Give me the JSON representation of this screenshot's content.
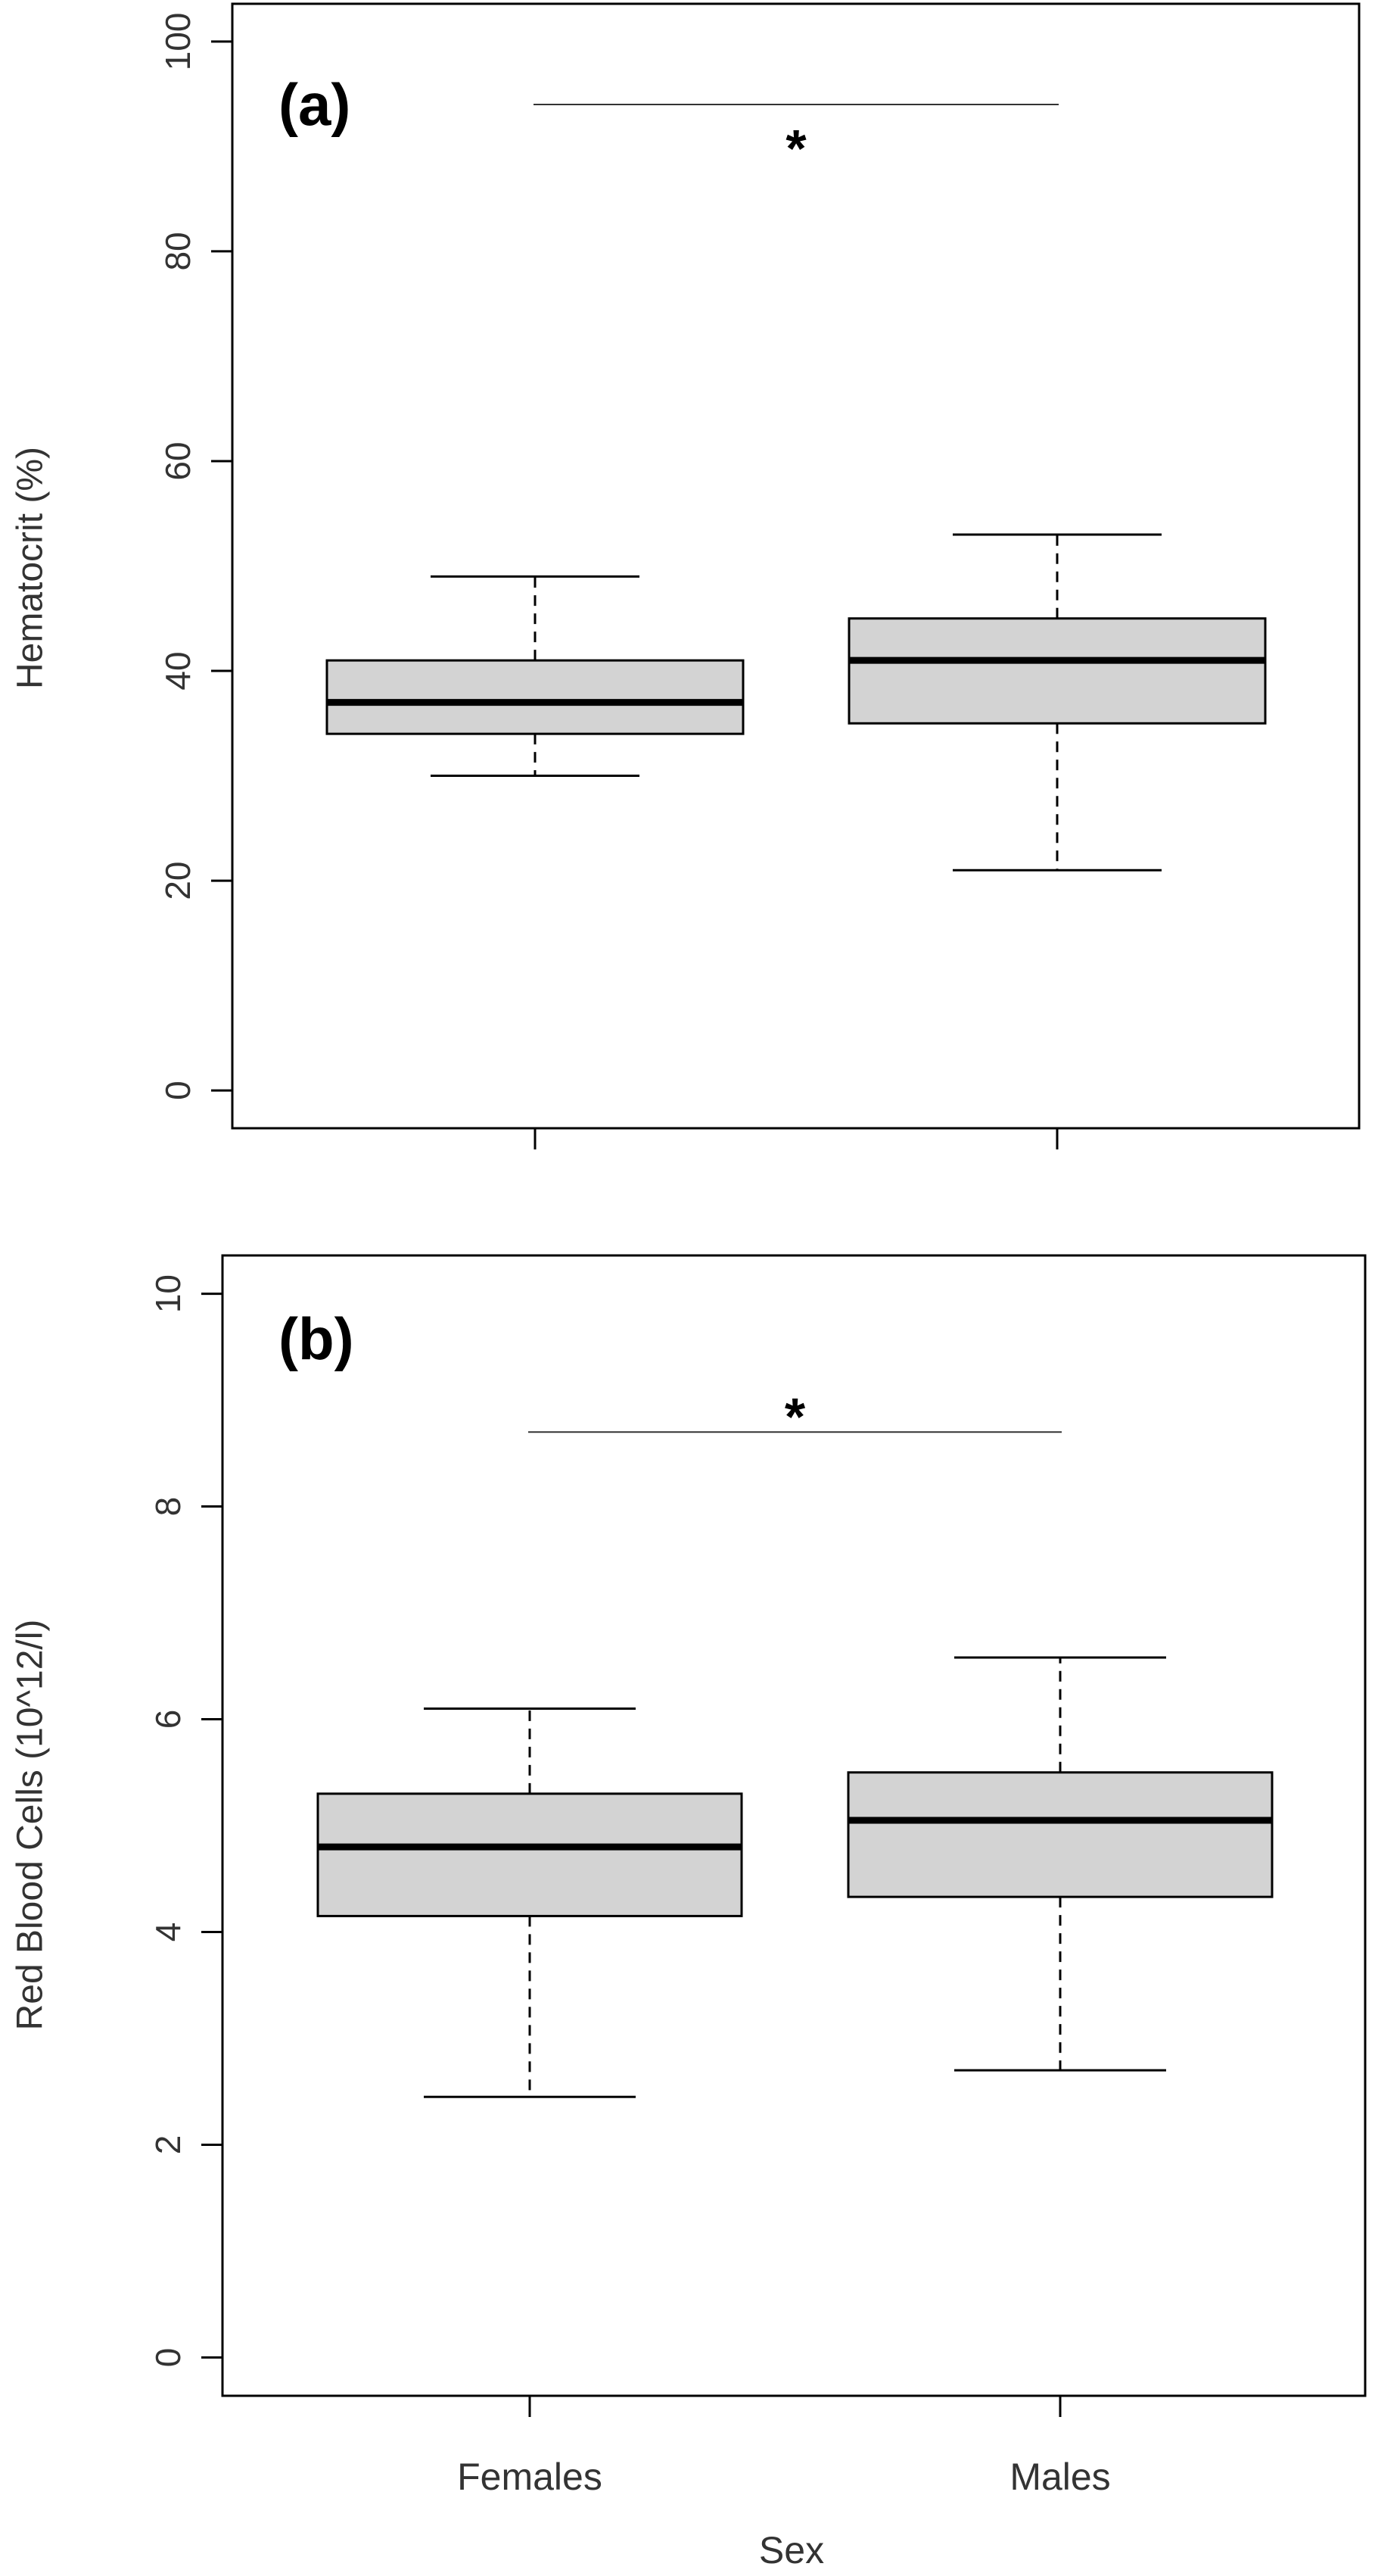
{
  "chart_data": [
    {
      "type": "box",
      "panel_label": "(a)",
      "title": "",
      "ylabel": "Hematocrit (%)",
      "xlabel": "",
      "ylim": [
        0,
        100
      ],
      "yticks": [
        0,
        20,
        40,
        60,
        80,
        100
      ],
      "categories": [
        "Females",
        "Males"
      ],
      "show_category_labels": false,
      "boxes": [
        {
          "category": "Females",
          "whisker_low": 30,
          "q1": 34,
          "median": 37,
          "q3": 41,
          "whisker_high": 49
        },
        {
          "category": "Males",
          "whisker_low": 21,
          "q1": 35,
          "median": 41,
          "q3": 45,
          "whisker_high": 53
        }
      ],
      "significance": {
        "from": "Females",
        "to": "Males",
        "y": 94,
        "marker": "*"
      },
      "box_fill": "#d3d3d3",
      "grid": false
    },
    {
      "type": "box",
      "panel_label": "(b)",
      "title": "",
      "ylabel": "Red Blood Cells (10^12/l)",
      "xlabel": "Sex",
      "ylim": [
        0,
        10
      ],
      "yticks": [
        0,
        2,
        4,
        6,
        8,
        10
      ],
      "categories": [
        "Females",
        "Males"
      ],
      "show_category_labels": true,
      "boxes": [
        {
          "category": "Females",
          "whisker_low": 2.45,
          "q1": 4.15,
          "median": 4.8,
          "q3": 5.3,
          "whisker_high": 6.1
        },
        {
          "category": "Males",
          "whisker_low": 2.7,
          "q1": 4.33,
          "median": 5.05,
          "q3": 5.5,
          "whisker_high": 6.58
        }
      ],
      "significance": {
        "from": "Females",
        "to": "Males",
        "y": 8.7,
        "marker": "*"
      },
      "box_fill": "#d3d3d3",
      "grid": false
    }
  ]
}
